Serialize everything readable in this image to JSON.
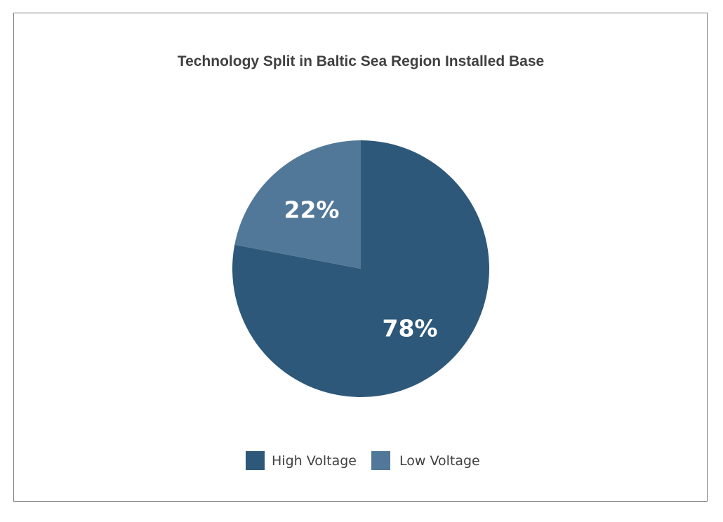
{
  "chart_data": {
    "type": "pie",
    "title": "Technology Split in Baltic Sea Region Installed Base",
    "slices": [
      {
        "name": "High Voltage",
        "value": 78,
        "label": "78%",
        "color": "#2d5879"
      },
      {
        "name": "Low Voltage",
        "value": 22,
        "label": "22%",
        "color": "#527899"
      }
    ],
    "start_angle_deg": 0,
    "direction": "clockwise",
    "legend_position": "bottom"
  }
}
